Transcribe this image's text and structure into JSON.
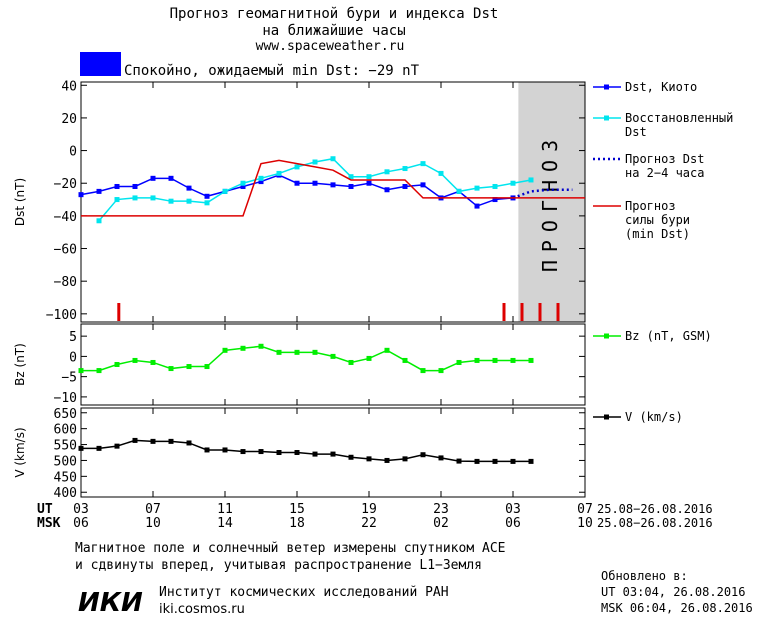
{
  "header": {
    "title_line1": "Прогноз геомагнитной бури и индекса Dst",
    "title_line2": "на ближайшие часы",
    "site": "www.spaceweather.ru",
    "status_text": "Спокойно, ожидаемый min Dst: −29 nT"
  },
  "footer": {
    "note_line1": "Магнитное поле и солнечный ветер измерены спутником ACE",
    "note_line2": "и сдвинуты вперед, учитывая распространение L1−Земля",
    "institute_logo": "ИКИ",
    "institute_name": "Институт космических исследований РАН",
    "institute_site": "iki.cosmos.ru",
    "updated_label": "Обновлено в:",
    "updated_ut": "UT  03:04, 26.08.2016",
    "updated_msk": "MSK 06:04, 26.08.2016"
  },
  "time_axis": {
    "ut_label": "UT",
    "msk_label": "MSK",
    "ut_ticks": [
      "03",
      "07",
      "11",
      "15",
      "19",
      "23",
      "03",
      "07"
    ],
    "msk_ticks": [
      "06",
      "10",
      "14",
      "18",
      "22",
      "02",
      "06",
      "10"
    ],
    "ut_range": "25.08−26.08.2016",
    "msk_range": "25.08−26.08.2016",
    "hour_range": [
      0,
      28
    ]
  },
  "colors": {
    "status_box": "#0000ff",
    "dst": "#0000ff",
    "recovered": "#00e5ee",
    "forecast_dst": "#0000cd",
    "storm_forecast": "#dd0000",
    "bz": "#00ee00",
    "v": "#000000",
    "forecast_zone": "#d3d3d3",
    "alert_ticks": "#dd0000"
  },
  "chart_data": [
    {
      "type": "line",
      "ylabel": "Dst (nT)",
      "ylim": [
        -105,
        42
      ],
      "yticks": [
        40,
        20,
        0,
        -20,
        -40,
        -60,
        -80,
        -100
      ],
      "forecast_zone": {
        "from_hour": 24.3,
        "to_hour": 28,
        "label": "ПРОГНОЗ"
      },
      "alert_ticks_hours": [
        2.1,
        23.5,
        24.5,
        25.5,
        26.5
      ],
      "legend": [
        {
          "key": "dst",
          "line1": "Dst, Киото",
          "line2": ""
        },
        {
          "key": "recovered",
          "line1": "Восстановленный",
          "line2": "Dst"
        },
        {
          "key": "forecast_dst",
          "line1": "Прогноз Dst",
          "line2": "на 2−4 часа"
        },
        {
          "key": "storm_forecast",
          "line1": "Прогноз",
          "line2": "силы бури",
          "line3": "(min Dst)"
        }
      ],
      "series": [
        {
          "name": "Dst, Киото",
          "key": "dst",
          "marker": true,
          "x": [
            0,
            1,
            2,
            3,
            4,
            5,
            6,
            7,
            8,
            9,
            10,
            11,
            12,
            13,
            14,
            15,
            16,
            17,
            18,
            19,
            20,
            21,
            22,
            23,
            24
          ],
          "y": [
            -27,
            -25,
            -22,
            -22,
            -17,
            -17,
            -23,
            -28,
            -25,
            -22,
            -19,
            -15,
            -20,
            -20,
            -21,
            -22,
            -20,
            -24,
            -22,
            -21,
            -29,
            -25,
            -34,
            -30,
            -29
          ]
        },
        {
          "name": "Восстановленный Dst",
          "key": "recovered",
          "marker": true,
          "x": [
            1,
            2,
            3,
            4,
            5,
            6,
            7,
            8,
            9,
            10,
            11,
            12,
            13,
            14,
            15,
            16,
            17,
            18,
            19,
            20,
            21,
            22,
            23,
            24,
            25
          ],
          "y": [
            -43,
            -30,
            -29,
            -29,
            -31,
            -31,
            -32,
            -25,
            -20,
            -17,
            -14,
            -10,
            -7,
            -5,
            -16,
            -16,
            -13,
            -11,
            -8,
            -14,
            -25,
            -23,
            -22,
            -20,
            -18
          ]
        },
        {
          "name": "Прогноз Dst на 2−4 часа",
          "key": "forecast_dst",
          "dotted": true,
          "x": [
            24,
            25,
            26,
            27.3
          ],
          "y": [
            -29,
            -25,
            -24,
            -24
          ]
        },
        {
          "name": "Прогноз силы бури (min Dst)",
          "key": "storm_forecast",
          "step": true,
          "x": [
            0,
            9,
            10,
            11,
            12,
            13,
            14,
            15,
            16,
            17,
            18,
            19,
            28
          ],
          "y": [
            -40,
            -40,
            -8,
            -6,
            -8,
            -10,
            -12,
            -18,
            -18,
            -18,
            -18,
            -29,
            -29
          ]
        }
      ]
    },
    {
      "type": "line",
      "ylabel": "Bz (nT)",
      "ylim": [
        -12,
        8
      ],
      "yticks": [
        5,
        0,
        -5,
        -10
      ],
      "legend": [
        {
          "key": "bz",
          "line1": "Bz (nT, GSM)"
        }
      ],
      "series": [
        {
          "name": "Bz (nT, GSM)",
          "key": "bz",
          "marker": true,
          "x": [
            0,
            1,
            2,
            3,
            4,
            5,
            6,
            7,
            8,
            9,
            10,
            11,
            12,
            13,
            14,
            15,
            16,
            17,
            18,
            19,
            20,
            21,
            22,
            23,
            24,
            25
          ],
          "y": [
            -3.5,
            -3.5,
            -2,
            -1,
            -1.5,
            -3,
            -2.5,
            -2.5,
            1.5,
            2,
            2.5,
            1,
            1,
            1,
            0,
            -1.5,
            -0.5,
            1.5,
            -1,
            -3.5,
            -3.5,
            -1.5,
            -1,
            -1,
            -1,
            -1
          ]
        }
      ]
    },
    {
      "type": "line",
      "ylabel": "V (km/s)",
      "ylim": [
        385,
        665
      ],
      "yticks": [
        650,
        600,
        550,
        500,
        450,
        400
      ],
      "legend": [
        {
          "key": "v",
          "line1": "V (km/s)"
        }
      ],
      "series": [
        {
          "name": "V (km/s)",
          "key": "v",
          "marker": true,
          "x": [
            0,
            1,
            2,
            3,
            4,
            5,
            6,
            7,
            8,
            9,
            10,
            11,
            12,
            13,
            14,
            15,
            16,
            17,
            18,
            19,
            20,
            21,
            22,
            23,
            24,
            25
          ],
          "y": [
            538,
            538,
            545,
            563,
            560,
            560,
            555,
            533,
            533,
            528,
            528,
            525,
            525,
            520,
            520,
            510,
            505,
            500,
            505,
            518,
            508,
            498,
            497,
            497,
            497,
            497
          ]
        }
      ]
    }
  ]
}
